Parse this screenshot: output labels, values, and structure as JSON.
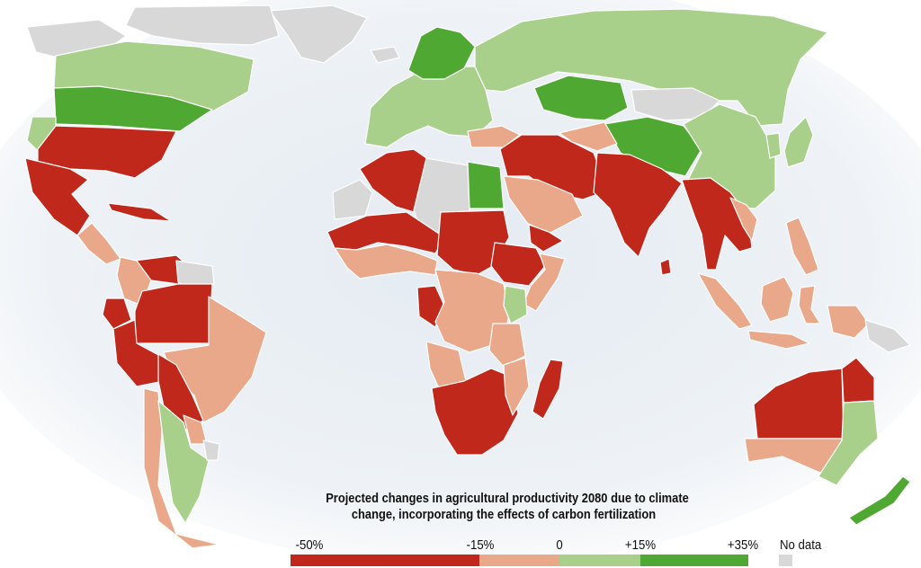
{
  "caption": {
    "line1": "Projected changes in agricultural productivity 2080 due to climate",
    "line2": "change, incorporating the effects of carbon fertilization"
  },
  "legend": {
    "ticks": [
      "-50%",
      "-15%",
      "0",
      "+15%",
      "+35%"
    ],
    "no_data_label": "No data",
    "bands": [
      {
        "category": "severe_decline",
        "from": "-50%",
        "to": "-15%",
        "color": "#c0281c"
      },
      {
        "category": "moderate_decline",
        "from": "-15%",
        "to": "0",
        "color": "#eaa88b"
      },
      {
        "category": "moderate_gain",
        "from": "0",
        "to": "+15%",
        "color": "#a8d08a"
      },
      {
        "category": "strong_gain",
        "from": "+15%",
        "to": "+35%",
        "color": "#4fa832"
      }
    ],
    "no_data_color": "#d8d8d8"
  },
  "colors": {
    "severe_decline": "#c0281c",
    "moderate_decline": "#eaa88b",
    "moderate_gain": "#a8d08a",
    "strong_gain": "#4fa832",
    "no_data": "#d8d8d8",
    "ocean_glow": "#e4ebf2"
  },
  "regions": [
    {
      "name": "greenland",
      "category": "no_data"
    },
    {
      "name": "canada-arctic",
      "category": "no_data"
    },
    {
      "name": "alaska",
      "category": "no_data"
    },
    {
      "name": "canada",
      "category": "moderate_gain"
    },
    {
      "name": "usa-north",
      "category": "strong_gain"
    },
    {
      "name": "usa-northwest",
      "category": "moderate_gain"
    },
    {
      "name": "usa-south",
      "category": "severe_decline"
    },
    {
      "name": "mexico",
      "category": "severe_decline"
    },
    {
      "name": "central-america",
      "category": "moderate_decline"
    },
    {
      "name": "cuba",
      "category": "severe_decline"
    },
    {
      "name": "venezuela",
      "category": "severe_decline"
    },
    {
      "name": "guianas",
      "category": "no_data"
    },
    {
      "name": "colombia",
      "category": "moderate_decline"
    },
    {
      "name": "ecuador",
      "category": "severe_decline"
    },
    {
      "name": "peru",
      "category": "severe_decline"
    },
    {
      "name": "brazil-west",
      "category": "severe_decline"
    },
    {
      "name": "brazil",
      "category": "moderate_decline"
    },
    {
      "name": "bolivia",
      "category": "severe_decline"
    },
    {
      "name": "paraguay",
      "category": "moderate_decline"
    },
    {
      "name": "chile",
      "category": "moderate_decline"
    },
    {
      "name": "argentina",
      "category": "moderate_gain"
    },
    {
      "name": "uruguay",
      "category": "no_data"
    },
    {
      "name": "iceland",
      "category": "no_data"
    },
    {
      "name": "scandinavia",
      "category": "strong_gain"
    },
    {
      "name": "europe",
      "category": "moderate_gain"
    },
    {
      "name": "russia",
      "category": "moderate_gain"
    },
    {
      "name": "kazakhstan",
      "category": "strong_gain"
    },
    {
      "name": "mongolia",
      "category": "no_data"
    },
    {
      "name": "china-west",
      "category": "strong_gain"
    },
    {
      "name": "china-east",
      "category": "moderate_gain"
    },
    {
      "name": "turkey",
      "category": "moderate_decline"
    },
    {
      "name": "middle-east",
      "category": "severe_decline"
    },
    {
      "name": "central-asia",
      "category": "moderate_decline"
    },
    {
      "name": "arabia",
      "category": "moderate_decline"
    },
    {
      "name": "yemen",
      "category": "severe_decline"
    },
    {
      "name": "india",
      "category": "severe_decline"
    },
    {
      "name": "sri-lanka",
      "category": "severe_decline"
    },
    {
      "name": "southeast-asia",
      "category": "severe_decline"
    },
    {
      "name": "indochina-east",
      "category": "moderate_decline"
    },
    {
      "name": "japan",
      "category": "moderate_gain"
    },
    {
      "name": "korea",
      "category": "moderate_gain"
    },
    {
      "name": "philippines",
      "category": "moderate_decline"
    },
    {
      "name": "sumatra",
      "category": "moderate_decline"
    },
    {
      "name": "java",
      "category": "moderate_decline"
    },
    {
      "name": "borneo",
      "category": "moderate_decline"
    },
    {
      "name": "sulawesi",
      "category": "moderate_decline"
    },
    {
      "name": "new-guinea",
      "category": "moderate_decline"
    },
    {
      "name": "new-guinea-east",
      "category": "no_data"
    },
    {
      "name": "north-africa",
      "category": "severe_decline"
    },
    {
      "name": "western-sahara",
      "category": "no_data"
    },
    {
      "name": "libya",
      "category": "no_data"
    },
    {
      "name": "egypt",
      "category": "strong_gain"
    },
    {
      "name": "sahel",
      "category": "severe_decline"
    },
    {
      "name": "west-africa",
      "category": "moderate_decline"
    },
    {
      "name": "sudan",
      "category": "severe_decline"
    },
    {
      "name": "ethiopia",
      "category": "severe_decline"
    },
    {
      "name": "somalia",
      "category": "moderate_decline"
    },
    {
      "name": "central-africa",
      "category": "moderate_decline"
    },
    {
      "name": "gabon",
      "category": "severe_decline"
    },
    {
      "name": "kenya",
      "category": "moderate_gain"
    },
    {
      "name": "tanzania",
      "category": "moderate_decline"
    },
    {
      "name": "angola",
      "category": "moderate_decline"
    },
    {
      "name": "southern-africa",
      "category": "severe_decline"
    },
    {
      "name": "mozambique",
      "category": "moderate_decline"
    },
    {
      "name": "madagascar",
      "category": "severe_decline"
    },
    {
      "name": "australia-west",
      "category": "severe_decline"
    },
    {
      "name": "australia-queensland",
      "category": "severe_decline"
    },
    {
      "name": "australia-south",
      "category": "moderate_decline"
    },
    {
      "name": "australia-southeast",
      "category": "moderate_gain"
    },
    {
      "name": "new-zealand",
      "category": "strong_gain"
    }
  ]
}
